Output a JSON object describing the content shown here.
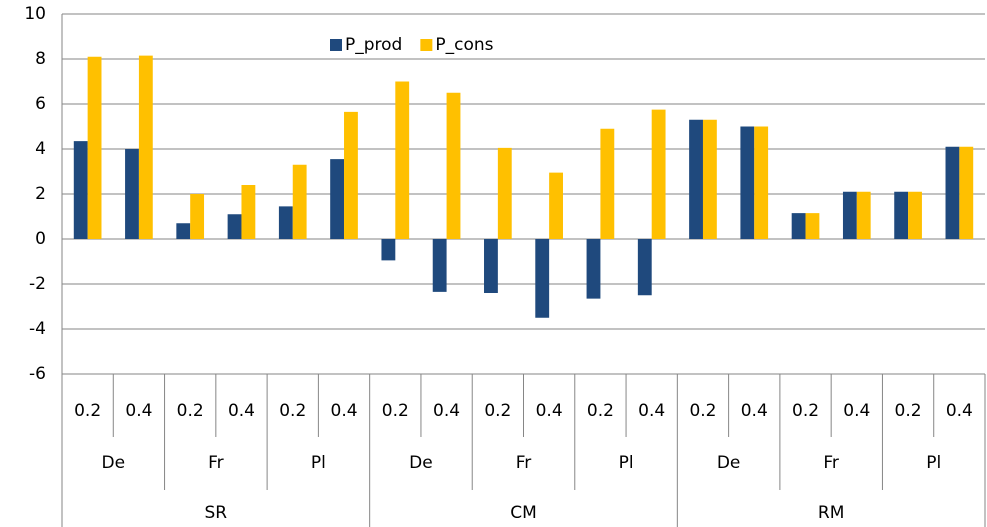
{
  "chart_data": {
    "type": "bar",
    "categories": [
      "0.2",
      "0.4",
      "0.2",
      "0.4",
      "0.2",
      "0.4",
      "0.2",
      "0.4",
      "0.2",
      "0.4",
      "0.2",
      "0.4",
      "0.2",
      "0.4",
      "0.2",
      "0.4",
      "0.2",
      "0.4"
    ],
    "subgroups": [
      "De",
      "Fr",
      "Pl",
      "De",
      "Fr",
      "Pl",
      "De",
      "Fr",
      "Pl"
    ],
    "groups": [
      "SR",
      "CM",
      "RM"
    ],
    "series": [
      {
        "name": "P_prod",
        "color": "#1f497d",
        "values": [
          4.35,
          4.0,
          0.7,
          1.1,
          1.45,
          3.55,
          -0.95,
          -2.35,
          -2.4,
          -3.5,
          -2.65,
          -2.5,
          5.3,
          5.0,
          1.15,
          2.1,
          2.1,
          4.1
        ]
      },
      {
        "name": "P_cons",
        "color": "#ffc000",
        "values": [
          8.1,
          8.15,
          2.0,
          2.4,
          3.3,
          5.65,
          7.0,
          6.5,
          4.05,
          2.95,
          4.9,
          5.75,
          5.3,
          5.0,
          1.15,
          2.1,
          2.1,
          4.1
        ]
      }
    ],
    "ylim": [
      -6,
      10
    ],
    "yticks": [
      -6,
      -4,
      -2,
      0,
      2,
      4,
      6,
      8,
      10
    ],
    "grid": true,
    "legend": "top"
  }
}
